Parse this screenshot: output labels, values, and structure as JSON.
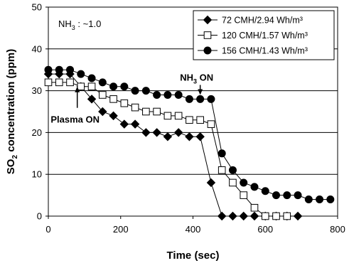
{
  "chart_data": {
    "type": "line",
    "xlabel": "Time (sec)",
    "ylabel": "SO",
    "ylabel_sub": "2",
    "ylabel_rest": " concentration (ppm)",
    "xlim": [
      0,
      800
    ],
    "ylim": [
      0,
      50
    ],
    "xticks": [
      0,
      200,
      400,
      600,
      800
    ],
    "yticks": [
      0,
      10,
      20,
      30,
      40,
      50
    ],
    "grid": "horizontal",
    "legend_placement": "top-right",
    "ratio_label": "NH",
    "ratio_sub": "3",
    "ratio_rest": " : ~1.0",
    "annotations": [
      {
        "text": "Plasma ON",
        "x": 80,
        "y": 31,
        "direction": "up"
      },
      {
        "text": "NH",
        "sub": "3",
        "rest": " ON",
        "x": 420,
        "y": 29,
        "direction": "down"
      }
    ],
    "series": [
      {
        "name": "72 CMH/2.94 Wh/m³",
        "marker": "diamond",
        "fill": "#000000",
        "x": [
          0,
          30,
          60,
          90,
          120,
          150,
          180,
          210,
          240,
          270,
          300,
          330,
          360,
          390,
          420,
          450,
          480,
          510,
          540,
          570,
          600,
          630,
          660,
          690
        ],
        "y": [
          34,
          34,
          34,
          31,
          28,
          25,
          24,
          22,
          22,
          20,
          20,
          19,
          20,
          19,
          19,
          8,
          0,
          0,
          0,
          0,
          0,
          0,
          0,
          0
        ]
      },
      {
        "name": "120 CMH/1.57 Wh/m³",
        "marker": "square",
        "fill": "#ffffff",
        "x": [
          0,
          30,
          60,
          90,
          120,
          150,
          180,
          210,
          240,
          270,
          300,
          330,
          360,
          390,
          420,
          450,
          480,
          510,
          540,
          570,
          600,
          630,
          660
        ],
        "y": [
          32,
          32,
          32,
          31,
          31,
          29,
          28,
          27,
          26,
          25,
          25,
          24,
          24,
          23,
          23,
          22,
          11,
          8,
          5,
          2,
          0,
          0,
          0
        ]
      },
      {
        "name": "156 CMH/1.43 Wh/m³",
        "marker": "circle",
        "fill": "#000000",
        "x": [
          0,
          30,
          60,
          90,
          120,
          150,
          180,
          210,
          240,
          270,
          300,
          330,
          360,
          390,
          420,
          450,
          480,
          510,
          540,
          570,
          600,
          630,
          660,
          690,
          720,
          750,
          780
        ],
        "y": [
          35,
          35,
          35,
          34,
          33,
          32,
          31,
          31,
          30,
          30,
          29,
          29,
          29,
          28,
          28,
          28,
          15,
          11,
          8,
          7,
          6,
          5,
          5,
          5,
          4,
          4,
          4
        ]
      }
    ]
  }
}
